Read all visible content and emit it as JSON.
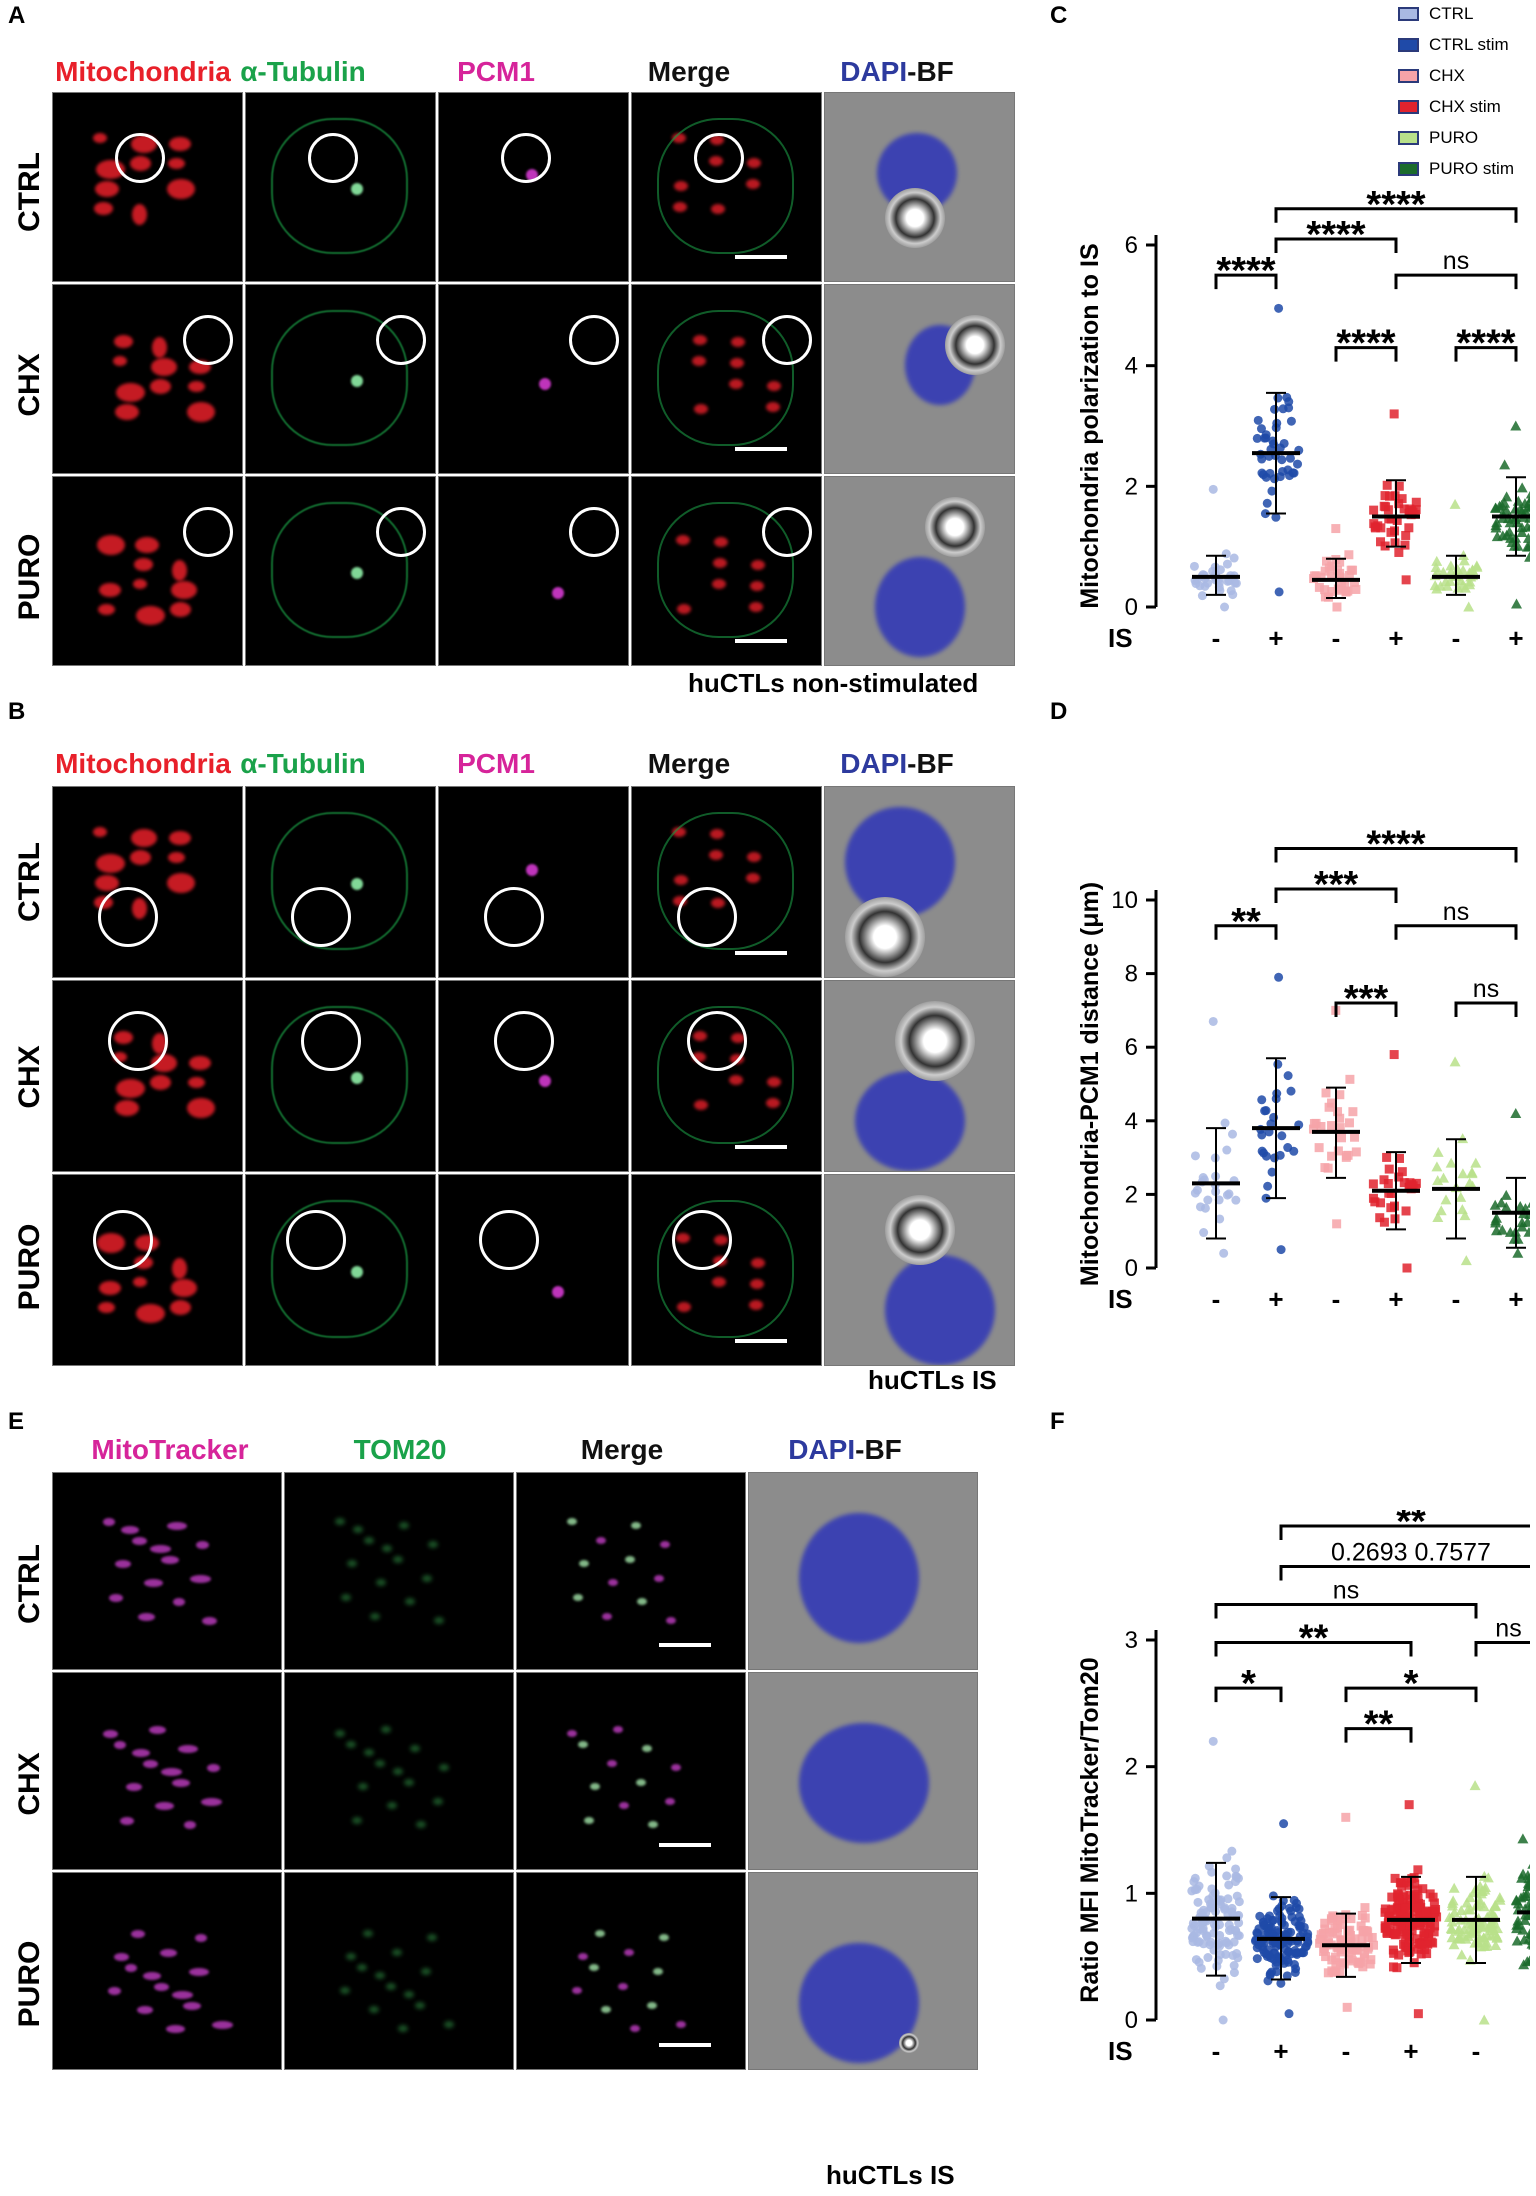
{
  "panels": {
    "A": {
      "letter": "A",
      "channels": [
        {
          "text": "Mitochondria",
          "color": "#e8202a"
        },
        {
          "text": "α-Tubulin",
          "color": "#1aa24a"
        },
        {
          "text": "PCM1",
          "color": "#d6249a"
        },
        {
          "text": "Merge",
          "color": "#111111"
        }
      ],
      "dapi": {
        "part1": "DAPI",
        "part1_color": "#2d3a9e",
        "part2": "-BF",
        "part2_color": "#111111"
      },
      "rows": [
        "CTRL",
        "CHX",
        "PURO"
      ],
      "condition": "huCTLs non-stimulated"
    },
    "B": {
      "letter": "B",
      "channels": [
        {
          "text": "Mitochondria",
          "color": "#e8202a"
        },
        {
          "text": "α-Tubulin",
          "color": "#1aa24a"
        },
        {
          "text": "PCM1",
          "color": "#d6249a"
        },
        {
          "text": "Merge",
          "color": "#111111"
        }
      ],
      "dapi": {
        "part1": "DAPI",
        "part1_color": "#2d3a9e",
        "part2": "-BF",
        "part2_color": "#111111"
      },
      "rows": [
        "CTRL",
        "CHX",
        "PURO"
      ],
      "condition": "huCTLs IS"
    },
    "E": {
      "letter": "E",
      "channels": [
        {
          "text": "MitoTracker",
          "color": "#d6249a"
        },
        {
          "text": "TOM20",
          "color": "#1aa24a"
        },
        {
          "text": "Merge",
          "color": "#111111"
        }
      ],
      "dapi": {
        "part1": "DAPI",
        "part1_color": "#2d3a9e",
        "part2": "-BF",
        "part2_color": "#111111"
      },
      "rows": [
        "CTRL",
        "CHX",
        "PURO"
      ],
      "condition": "huCTLs IS"
    }
  },
  "legend": [
    {
      "label": "CTRL",
      "color": "#a9b9e3"
    },
    {
      "label": "CTRL stim",
      "color": "#1f4aa8"
    },
    {
      "label": "CHX",
      "color": "#f6a3a8"
    },
    {
      "label": "CHX stim",
      "color": "#e0232e"
    },
    {
      "label": "PURO",
      "color": "#b8e08a"
    },
    {
      "label": "PURO stim",
      "color": "#1b6b2c"
    }
  ],
  "chart_data": [
    {
      "panel": "C",
      "type": "scatter",
      "ylabel": "Mitochondria polarization to IS",
      "ylim": [
        0,
        6
      ],
      "yticks": [
        0,
        2,
        4,
        6
      ],
      "xlabel": "IS",
      "categories": [
        "-",
        "+",
        "-",
        "+",
        "-",
        "+"
      ],
      "groups": [
        "CTRL",
        "CTRL stim",
        "CHX",
        "CHX stim",
        "PURO",
        "PURO stim"
      ],
      "means": [
        0.5,
        2.55,
        0.45,
        1.5,
        0.5,
        1.5
      ],
      "sd_low": [
        0.2,
        1.55,
        0.15,
        1.0,
        0.2,
        0.85
      ],
      "sd_high": [
        0.85,
        3.55,
        0.8,
        2.1,
        0.85,
        2.15
      ],
      "max": [
        1.95,
        4.95,
        1.3,
        3.2,
        1.7,
        3.0
      ],
      "min": [
        0.0,
        0.25,
        0.0,
        0.45,
        0.0,
        0.05
      ],
      "n": [
        35,
        45,
        35,
        40,
        35,
        55
      ],
      "brackets": [
        {
          "from": 0,
          "to": 1,
          "level": 5.5,
          "text": "****"
        },
        {
          "from": 1,
          "to": 5,
          "level": 6.6,
          "text": "****"
        },
        {
          "from": 1,
          "to": 3,
          "level": 6.1,
          "text": "****"
        },
        {
          "from": 3,
          "to": 5,
          "level": 5.5,
          "text": "ns"
        },
        {
          "from": 2,
          "to": 3,
          "level": 4.3,
          "text": "****"
        },
        {
          "from": 4,
          "to": 5,
          "level": 4.3,
          "text": "****"
        }
      ]
    },
    {
      "panel": "D",
      "type": "scatter",
      "ylabel": "Mitochondria-PCM1 distance (μm)",
      "ylim": [
        0,
        10
      ],
      "yticks": [
        0,
        2,
        4,
        6,
        8,
        10
      ],
      "xlabel": "IS",
      "categories": [
        "-",
        "+",
        "-",
        "+",
        "-",
        "+"
      ],
      "groups": [
        "CTRL",
        "CTRL stim",
        "CHX",
        "CHX stim",
        "PURO",
        "PURO stim"
      ],
      "means": [
        2.3,
        3.8,
        3.7,
        2.1,
        2.15,
        1.5
      ],
      "sd_low": [
        0.8,
        1.9,
        2.45,
        1.05,
        0.8,
        0.55
      ],
      "sd_high": [
        3.8,
        5.7,
        4.9,
        3.15,
        3.5,
        2.45
      ],
      "max": [
        6.7,
        7.9,
        7.0,
        5.8,
        5.6,
        4.2
      ],
      "min": [
        0.4,
        0.5,
        1.2,
        0.0,
        0.2,
        0.4
      ],
      "n": [
        25,
        27,
        28,
        30,
        22,
        25
      ],
      "brackets": [
        {
          "from": 0,
          "to": 1,
          "level": 9.3,
          "text": "**"
        },
        {
          "from": 1,
          "to": 5,
          "level": 11.4,
          "text": "****"
        },
        {
          "from": 1,
          "to": 3,
          "level": 10.3,
          "text": "***"
        },
        {
          "from": 3,
          "to": 5,
          "level": 9.3,
          "text": "ns"
        },
        {
          "from": 2,
          "to": 3,
          "level": 7.2,
          "text": "***"
        },
        {
          "from": 4,
          "to": 5,
          "level": 7.2,
          "text": "ns"
        }
      ]
    },
    {
      "panel": "F",
      "type": "scatter",
      "ylabel": "Ratio MFI MitoTracker/Tom20",
      "ylim": [
        0,
        3
      ],
      "yticks": [
        0,
        1,
        2,
        3
      ],
      "xlabel": "IS",
      "categories": [
        "-",
        "+",
        "-",
        "+",
        "-",
        "+"
      ],
      "groups": [
        "CTRL",
        "CTRL stim",
        "CHX",
        "CHX stim",
        "PURO",
        "PURO stim"
      ],
      "means": [
        0.8,
        0.64,
        0.59,
        0.79,
        0.79,
        0.85
      ],
      "sd_low": [
        0.35,
        0.32,
        0.34,
        0.45,
        0.45,
        0.4
      ],
      "sd_high": [
        1.24,
        0.97,
        0.84,
        1.13,
        1.13,
        1.29
      ],
      "max": [
        2.2,
        1.55,
        1.6,
        1.7,
        1.85,
        2.6
      ],
      "min": [
        0.0,
        0.05,
        0.1,
        0.05,
        0.0,
        0.1
      ],
      "n": [
        110,
        130,
        90,
        160,
        100,
        120
      ],
      "brackets": [
        {
          "from": 0,
          "to": 1,
          "level": 2.62,
          "text": "*"
        },
        {
          "from": 0,
          "to": 3,
          "level": 2.98,
          "text": "**"
        },
        {
          "from": 0,
          "to": 4,
          "level": 3.28,
          "text": "ns"
        },
        {
          "from": 1,
          "to": 5,
          "level": 3.58,
          "text": "0.2693   0.7577"
        },
        {
          "from": 1,
          "to": 5,
          "level": 3.9,
          "text": "**"
        },
        {
          "from": 2,
          "to": 3,
          "level": 2.3,
          "text": "**"
        },
        {
          "from": 2,
          "to": 4,
          "level": 2.62,
          "text": "*"
        },
        {
          "from": 4,
          "to": 5,
          "level": 2.98,
          "text": "ns"
        }
      ]
    }
  ]
}
